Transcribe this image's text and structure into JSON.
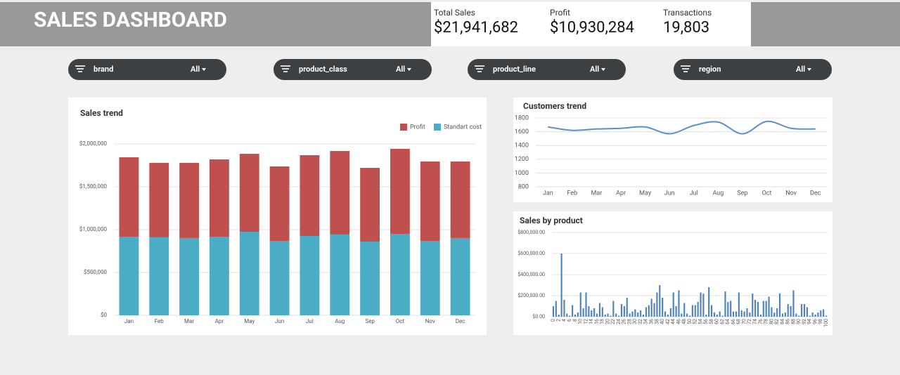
{
  "header": {
    "title": "SALES DASHBOARD"
  },
  "kpis": [
    {
      "label": "Total Sales",
      "value": "$21,941,682"
    },
    {
      "label": "Profit",
      "value": "$10,930,284"
    },
    {
      "label": "Transactions",
      "value": "19,803"
    }
  ],
  "filters": [
    {
      "name": "brand",
      "value": "All"
    },
    {
      "name": "product_class",
      "value": "All"
    },
    {
      "name": "product_line",
      "value": "All"
    },
    {
      "name": "region",
      "value": "All"
    }
  ],
  "chart_data": [
    {
      "type": "bar",
      "title": "Sales trend",
      "categories": [
        "Jan",
        "Feb",
        "Mar",
        "Apr",
        "May",
        "Jun",
        "Jul",
        "Aug",
        "Sep",
        "Oct",
        "Nov",
        "Dec"
      ],
      "series": [
        {
          "name": "Profit",
          "color": "#c0504d",
          "values": [
            926000,
            869000,
            877000,
            902000,
            910000,
            869000,
            943000,
            975000,
            860000,
            992000,
            926000,
            893000
          ]
        },
        {
          "name": "Standart cost",
          "color": "#4bacc6",
          "values": [
            918000,
            910000,
            902000,
            918000,
            975000,
            869000,
            926000,
            943000,
            861000,
            951000,
            869000,
            902000
          ]
        }
      ],
      "stacked": true,
      "legend": "top-right",
      "ylim": [
        0,
        2000000
      ],
      "yticks": [
        {
          "value": 0,
          "label": "$0"
        },
        {
          "value": 500000,
          "label": "$500,000"
        },
        {
          "value": 1000000,
          "label": "$1,000,000"
        },
        {
          "value": 1500000,
          "label": "$1,500,000"
        },
        {
          "value": 2000000,
          "label": "$2,000,000"
        }
      ],
      "grid": true
    },
    {
      "type": "line",
      "title": "Customers trend",
      "categories": [
        "Jan",
        "Feb",
        "Mar",
        "Apr",
        "May",
        "Jun",
        "Jul",
        "Aug",
        "Sep",
        "Oct",
        "Nov",
        "Dec"
      ],
      "values": [
        1670,
        1620,
        1640,
        1650,
        1670,
        1570,
        1690,
        1740,
        1570,
        1750,
        1650,
        1640
      ],
      "color": "#5b8fc9",
      "smooth": true,
      "ylim": [
        800,
        1800
      ],
      "yticks": [
        800,
        1000,
        1200,
        1400,
        1600,
        1800
      ],
      "grid": true
    },
    {
      "type": "bar",
      "title": "Sales by product",
      "categories": [
        0,
        null,
        2,
        null,
        4,
        null,
        6,
        null,
        8,
        null,
        10,
        null,
        12,
        null,
        14,
        null,
        16,
        null,
        18,
        null,
        20,
        null,
        22,
        null,
        24,
        null,
        26,
        null,
        28,
        null,
        30,
        null,
        32,
        null,
        34,
        null,
        36,
        null,
        38,
        null,
        40,
        null,
        42,
        null,
        44,
        null,
        46,
        null,
        48,
        null,
        50,
        null,
        52,
        null,
        54,
        null,
        56,
        null,
        58,
        null,
        60,
        null,
        62,
        null,
        64,
        null,
        66,
        null,
        68,
        null,
        70,
        null,
        72,
        null,
        74,
        null,
        76,
        null,
        78,
        null,
        80,
        null,
        82,
        null,
        84,
        null,
        86,
        null,
        88,
        null,
        90,
        null,
        92,
        null,
        94,
        null,
        96,
        null,
        98,
        null,
        100
      ],
      "values": [
        100000,
        150000,
        20000,
        600000,
        160000,
        30000,
        10000,
        110000,
        20000,
        40000,
        230000,
        80000,
        230000,
        100000,
        60000,
        80000,
        30000,
        130000,
        90000,
        20000,
        30000,
        10000,
        150000,
        30000,
        10000,
        120000,
        100000,
        180000,
        30000,
        50000,
        70000,
        40000,
        60000,
        20000,
        90000,
        110000,
        170000,
        130000,
        230000,
        300000,
        180000,
        50000,
        20000,
        80000,
        230000,
        100000,
        250000,
        30000,
        130000,
        30000,
        10000,
        110000,
        110000,
        140000,
        230000,
        220000,
        20000,
        280000,
        110000,
        40000,
        20000,
        50000,
        10000,
        240000,
        140000,
        150000,
        50000,
        50000,
        230000,
        60000,
        50000,
        80000,
        40000,
        220000,
        160000,
        140000,
        20000,
        150000,
        150000,
        190000,
        90000,
        40000,
        80000,
        220000,
        30000,
        40000,
        120000,
        100000,
        250000,
        30000,
        10000,
        120000,
        120000,
        90000,
        10000,
        40000,
        20000,
        40000,
        60000,
        70000,
        10000
      ],
      "color": "#4f81bd",
      "ylim": [
        0,
        800000
      ],
      "yticks": [
        {
          "value": 0,
          "label": "$0.00"
        },
        {
          "value": 200000,
          "label": "$200,000.00"
        },
        {
          "value": 400000,
          "label": "$400,000.00"
        },
        {
          "value": 600000,
          "label": "$600,000.00"
        },
        {
          "value": 800000,
          "label": "$800,000.00"
        }
      ],
      "grid": true
    }
  ]
}
